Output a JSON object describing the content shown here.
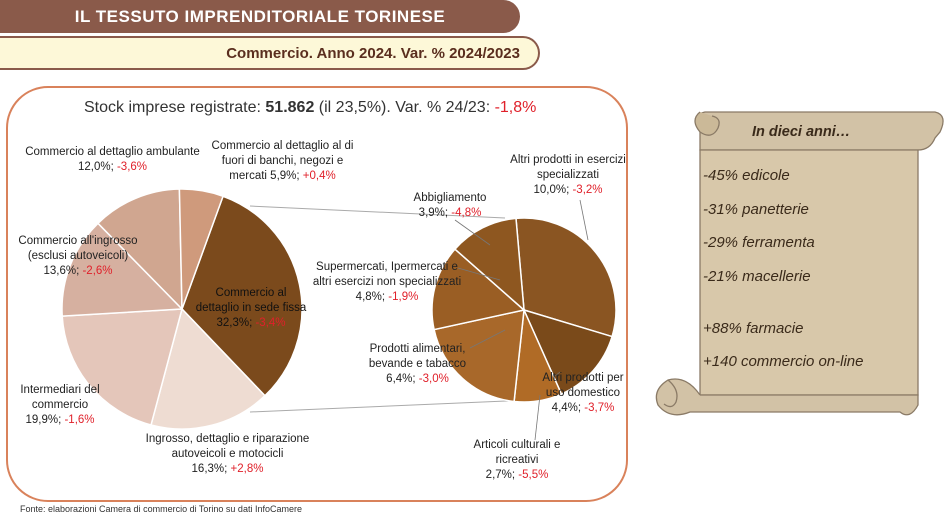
{
  "header": {
    "title": "IL TESSUTO IMPRENDITORIALE TORINESE",
    "subtitle": "Commercio. Anno 2024. Var. % 2024/2023"
  },
  "stock": {
    "prefix": "Stock imprese registrate: ",
    "value": "51.862",
    "middle": " (il 23,5%). Var. % 24/23: ",
    "var": "-1,8%"
  },
  "chart_data": [
    {
      "type": "pie",
      "slices": [
        {
          "name": "Commercio al dettaglio in sede fissa",
          "value": 32.3,
          "value_label": "32,3%",
          "var": "-3,4%",
          "color": "#7b4a1c"
        },
        {
          "name": "Ingrosso, dettaglio e riparazione autoveicoli e motocicli",
          "value": 16.3,
          "value_label": "16,3%",
          "var": "+2,8%",
          "color": "#eedcd2"
        },
        {
          "name": "Intermediari del commercio",
          "value": 19.9,
          "value_label": "19,9%",
          "var": "-1,6%",
          "color": "#e4c6ba"
        },
        {
          "name": "Commercio all'ingrosso (esclusi autoveicoli)",
          "value": 13.6,
          "value_label": "13,6%",
          "var": "-2,6%",
          "color": "#d6b0a0"
        },
        {
          "name": "Commercio al dettaglio ambulante",
          "value": 12.0,
          "value_label": "12,0%",
          "var": "-3,6%",
          "color": "#d0a690"
        },
        {
          "name": "Commercio al dettaglio al di fuori di banchi, negozi e mercati",
          "value": 5.9,
          "value_label": "5,9%",
          "var": "+0,4%",
          "color": "#cf9a7c"
        }
      ]
    },
    {
      "type": "pie",
      "slices": [
        {
          "name": "Altri prodotti in esercizi specializzati",
          "value": 10.0,
          "value_label": "10,0%",
          "var": "-3,2%",
          "color": "#8a5522"
        },
        {
          "name": "Altri prodotti per uso domestico",
          "value": 4.4,
          "value_label": "4,4%",
          "var": "-3,7%",
          "color": "#7a4a1a"
        },
        {
          "name": "Articoli culturali e ricreativi",
          "value": 2.7,
          "value_label": "2,7%",
          "var": "-5,5%",
          "color": "#b06b26"
        },
        {
          "name": "Prodotti alimentari, bevande e tabacco",
          "value": 6.4,
          "value_label": "6,4%",
          "var": "-3,0%",
          "color": "#a8682a"
        },
        {
          "name": "Supermercati, Ipermercati e altri esercizi non specializzati",
          "value": 4.8,
          "value_label": "4,8%",
          "var": "-1,9%",
          "color": "#9a5e24"
        },
        {
          "name": "Abbigliamento",
          "value": 3.9,
          "value_label": "3,9%",
          "var": "-4,8%",
          "color": "#8e5720"
        }
      ]
    }
  ],
  "labels": {
    "ambulante": {
      "l1": "Commercio al dettaglio ambulante",
      "v": "12,0%; ",
      "var": "-3,6%"
    },
    "fuori": {
      "l1": "Commercio al dettaglio al di",
      "l2": "fuori di banchi, negozi e",
      "l3": "mercati 5,9%; ",
      "var": "+0,4%"
    },
    "ingrosso": {
      "l1": "Commercio all'ingrosso",
      "l2": "(esclusi autoveicoli)",
      "v": "13,6%; ",
      "var": "-2,6%"
    },
    "intermediari": {
      "l1": "Intermediari del",
      "l2": "commercio",
      "v": "19,9%; ",
      "var": "-1,6%"
    },
    "autoveicoli": {
      "l1": "Ingrosso, dettaglio e riparazione",
      "l2": "autoveicoli e motocicli",
      "v": "16,3%; ",
      "var": "+2,8%"
    },
    "sedefissa": {
      "l1": "Commercio al",
      "l2": "dettaglio in sede fissa",
      "v": "32,3%; ",
      "var": "-3,4%"
    },
    "altriprod": {
      "l1": "Altri prodotti in esercizi",
      "l2": "specializzati",
      "v": "10,0%; ",
      "var": "-3,2%"
    },
    "abbigliamento": {
      "l1": "Abbigliamento",
      "v": "3,9%; ",
      "var": "-4,8%"
    },
    "supermercati": {
      "l1": "Supermercati, Ipermercati e",
      "l2": "altri esercizi non specializzati",
      "v": "4,8%; ",
      "var": "-1,9%"
    },
    "alimentari": {
      "l1": "Prodotti alimentari,",
      "l2": "bevande e tabacco",
      "v": "6,4%; ",
      "var": "-3,0%"
    },
    "domestico": {
      "l1": "Altri prodotti per",
      "l2": "uso domestico",
      "v": "4,4%; ",
      "var": "-3,7%"
    },
    "culturali": {
      "l1": "Articoli culturali e",
      "l2": "ricreativi",
      "v": "2,7%; ",
      "var": "-5,5%"
    }
  },
  "scroll": {
    "title": "In dieci anni…",
    "items": [
      "-45% edicole",
      "-31% panetterie",
      "-29% ferramenta",
      "-21% macellerie",
      "+88% farmacie",
      "+140 commercio on-line"
    ]
  },
  "source": "Fonte: elaborazioni Camera di commercio di Torino su dati InfoCamere"
}
